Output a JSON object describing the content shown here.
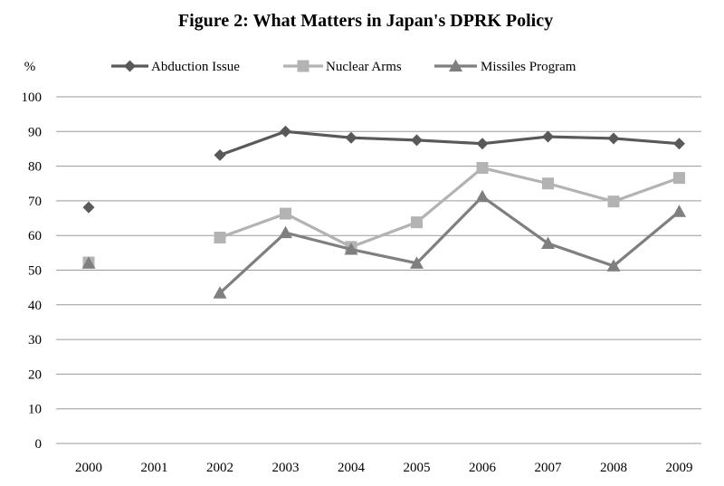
{
  "chart_data": {
    "type": "line",
    "title": "Figure 2: What Matters in Japan's DPRK Policy",
    "ylabel": "%",
    "xlabel": "",
    "categories": [
      "2000",
      "2001",
      "2002",
      "2003",
      "2004",
      "2005",
      "2006",
      "2007",
      "2008",
      "2009"
    ],
    "ylim": [
      0,
      100
    ],
    "yticks": [
      0,
      10,
      20,
      30,
      40,
      50,
      60,
      70,
      80,
      90,
      100
    ],
    "grid": "horizontal",
    "legend": "top",
    "series": [
      {
        "name": "Abduction Issue",
        "marker": "diamond",
        "color": "#595959",
        "values": [
          68.1,
          null,
          83.2,
          90.0,
          88.2,
          87.5,
          86.5,
          88.5,
          88.0,
          86.5
        ]
      },
      {
        "name": "Nuclear Arms",
        "marker": "square",
        "color": "#b3b3b3",
        "values": [
          52.2,
          null,
          59.4,
          66.3,
          56.7,
          63.8,
          79.5,
          75.0,
          69.8,
          76.6
        ]
      },
      {
        "name": "Missiles Program",
        "marker": "triangle",
        "color": "#7f7f7f",
        "values": [
          52.0,
          null,
          43.4,
          60.8,
          56.0,
          52.0,
          71.2,
          57.7,
          51.2,
          66.9
        ]
      }
    ]
  }
}
